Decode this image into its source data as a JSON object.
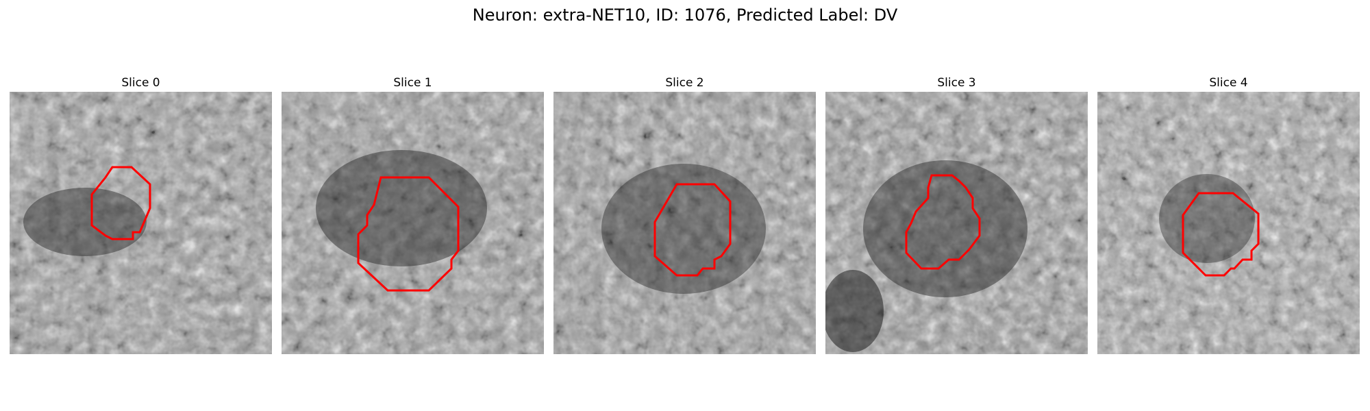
{
  "figure": {
    "title": "Neuron: extra-NET10, ID: 1076, Predicted Label: DV",
    "contour_color": "#ff0000"
  },
  "panels": [
    {
      "title": "Slice 0"
    },
    {
      "title": "Slice 1"
    },
    {
      "title": "Slice 2"
    },
    {
      "title": "Slice 3"
    },
    {
      "title": "Slice 4"
    }
  ]
}
